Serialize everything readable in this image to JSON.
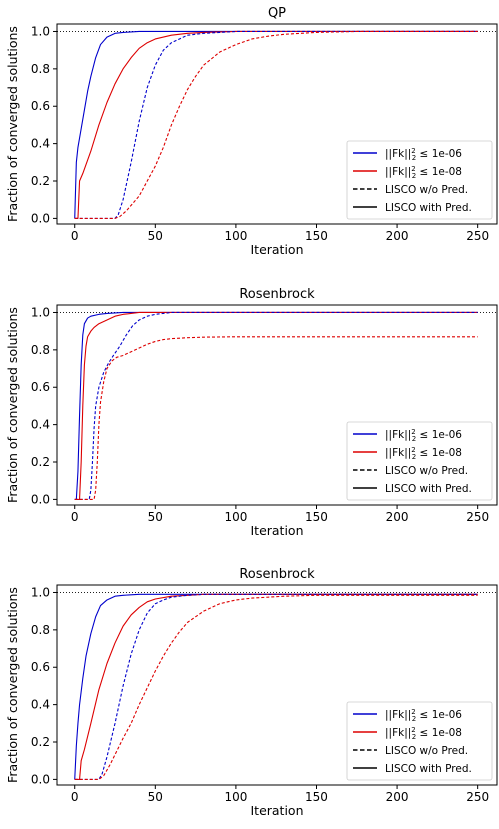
{
  "chart_data": [
    {
      "type": "line",
      "title": "QP",
      "xlabel": "Iteration",
      "ylabel": "Fraction of converged solutions",
      "xlim": [
        -11,
        262
      ],
      "ylim": [
        -0.03,
        1.04
      ],
      "xticks": [
        0,
        50,
        100,
        150,
        200,
        250
      ],
      "yticks": [
        "0.0",
        "0.2",
        "0.4",
        "0.6",
        "0.8",
        "1.0"
      ],
      "reference_line": {
        "y": 1.0,
        "style": "dotted",
        "color": "#000000"
      },
      "grid": false,
      "legend_position": "lower-right",
      "legend": [
        {
          "prefix": "||Fk||",
          "sup": "2",
          "sub": "2",
          "suffix": " ≤ 1e-06",
          "color": "#0000cc",
          "dash": "solid"
        },
        {
          "prefix": "||Fk||",
          "sup": "2",
          "sub": "2",
          "suffix": " ≤ 1e-08",
          "color": "#dd0000",
          "dash": "solid"
        },
        {
          "label": "LISCO w/o Pred.",
          "color": "#000000",
          "dash": "dashed"
        },
        {
          "label": "LISCO with Pred.",
          "color": "#000000",
          "dash": "solid"
        }
      ],
      "series": [
        {
          "color": "#0000cc",
          "dash": "solid",
          "x": [
            0,
            1,
            2,
            4,
            6,
            8,
            10,
            13,
            16,
            20,
            25,
            30,
            40,
            60,
            100,
            150,
            200,
            250
          ],
          "y": [
            0,
            0.3,
            0.38,
            0.48,
            0.58,
            0.68,
            0.76,
            0.86,
            0.93,
            0.97,
            0.99,
            0.995,
            1.0,
            1.0,
            1.0,
            1.0,
            1.0,
            1.0
          ]
        },
        {
          "color": "#dd0000",
          "dash": "solid",
          "x": [
            0,
            2,
            3,
            5,
            10,
            15,
            20,
            25,
            30,
            35,
            40,
            45,
            50,
            60,
            70,
            80,
            100,
            150,
            250
          ],
          "y": [
            0,
            0,
            0.2,
            0.24,
            0.36,
            0.5,
            0.62,
            0.72,
            0.8,
            0.86,
            0.91,
            0.94,
            0.96,
            0.98,
            0.99,
            0.995,
            1.0,
            1.0,
            1.0
          ]
        },
        {
          "color": "#0000cc",
          "dash": "dashed",
          "x": [
            0,
            25,
            27,
            30,
            35,
            40,
            45,
            50,
            55,
            60,
            65,
            70,
            80,
            90,
            100,
            120,
            150,
            250
          ],
          "y": [
            0,
            0,
            0.02,
            0.1,
            0.3,
            0.52,
            0.7,
            0.82,
            0.9,
            0.94,
            0.96,
            0.98,
            0.99,
            0.995,
            1.0,
            1.0,
            1.0,
            1.0
          ]
        },
        {
          "color": "#dd0000",
          "dash": "dashed",
          "x": [
            0,
            25,
            28,
            32,
            36,
            40,
            45,
            50,
            55,
            60,
            65,
            70,
            75,
            80,
            90,
            100,
            110,
            120,
            130,
            140,
            150,
            175,
            200,
            250
          ],
          "y": [
            0,
            0,
            0.01,
            0.04,
            0.08,
            0.12,
            0.2,
            0.28,
            0.38,
            0.5,
            0.6,
            0.69,
            0.76,
            0.82,
            0.89,
            0.93,
            0.96,
            0.975,
            0.985,
            0.99,
            0.995,
            1.0,
            1.0,
            1.0
          ]
        }
      ]
    },
    {
      "type": "line",
      "title": "Rosenbrock",
      "xlabel": "Iteration",
      "ylabel": "Fraction of converged solutions",
      "xlim": [
        -11,
        262
      ],
      "ylim": [
        -0.03,
        1.04
      ],
      "xticks": [
        0,
        50,
        100,
        150,
        200,
        250
      ],
      "yticks": [
        "0.0",
        "0.2",
        "0.4",
        "0.6",
        "0.8",
        "1.0"
      ],
      "reference_line": {
        "y": 1.0,
        "style": "dotted",
        "color": "#000000"
      },
      "grid": false,
      "legend_position": "lower-right",
      "legend": [
        {
          "prefix": "||Fk||",
          "sup": "2",
          "sub": "2",
          "suffix": " ≤ 1e-06",
          "color": "#0000cc",
          "dash": "solid"
        },
        {
          "prefix": "||Fk||",
          "sup": "2",
          "sub": "2",
          "suffix": " ≤ 1e-08",
          "color": "#dd0000",
          "dash": "solid"
        },
        {
          "label": "LISCO w/o Pred.",
          "color": "#000000",
          "dash": "dashed"
        },
        {
          "label": "LISCO with Pred.",
          "color": "#000000",
          "dash": "solid"
        }
      ],
      "series": [
        {
          "color": "#0000cc",
          "dash": "solid",
          "x": [
            0,
            1,
            2,
            3,
            4,
            5,
            6,
            8,
            10,
            15,
            20,
            30,
            40,
            60,
            250
          ],
          "y": [
            0,
            0,
            0.15,
            0.45,
            0.72,
            0.88,
            0.94,
            0.97,
            0.98,
            0.99,
            0.995,
            1.0,
            1.0,
            1.0,
            1.0
          ]
        },
        {
          "color": "#dd0000",
          "dash": "solid",
          "x": [
            0,
            3,
            4,
            5,
            6,
            7,
            8,
            10,
            12,
            15,
            20,
            25,
            30,
            40,
            50,
            250
          ],
          "y": [
            0,
            0,
            0.2,
            0.5,
            0.72,
            0.82,
            0.87,
            0.9,
            0.92,
            0.94,
            0.96,
            0.98,
            0.99,
            1.0,
            1.0,
            1.0
          ]
        },
        {
          "color": "#0000cc",
          "dash": "dashed",
          "x": [
            0,
            9,
            10,
            11,
            12,
            13,
            15,
            18,
            21,
            24,
            28,
            32,
            36,
            40,
            45,
            50,
            60,
            250
          ],
          "y": [
            0,
            0,
            0.05,
            0.2,
            0.38,
            0.5,
            0.6,
            0.68,
            0.73,
            0.77,
            0.82,
            0.88,
            0.93,
            0.96,
            0.98,
            0.99,
            1.0,
            1.0
          ]
        },
        {
          "color": "#dd0000",
          "dash": "dashed",
          "x": [
            0,
            12,
            13,
            14,
            15,
            16,
            18,
            20,
            23,
            26,
            30,
            35,
            40,
            45,
            50,
            55,
            60,
            70,
            80,
            100,
            150,
            250
          ],
          "y": [
            0,
            0,
            0.05,
            0.2,
            0.4,
            0.52,
            0.63,
            0.7,
            0.74,
            0.76,
            0.77,
            0.79,
            0.81,
            0.83,
            0.845,
            0.855,
            0.86,
            0.865,
            0.868,
            0.87,
            0.87,
            0.87
          ]
        }
      ]
    },
    {
      "type": "line",
      "title": "Rosenbrock",
      "xlabel": "Iteration",
      "ylabel": "Fraction of converged solutions",
      "xlim": [
        -11,
        262
      ],
      "ylim": [
        -0.03,
        1.04
      ],
      "xticks": [
        0,
        50,
        100,
        150,
        200,
        250
      ],
      "yticks": [
        "0.0",
        "0.2",
        "0.4",
        "0.6",
        "0.8",
        "1.0"
      ],
      "reference_line": {
        "y": 1.0,
        "style": "dotted",
        "color": "#000000"
      },
      "grid": false,
      "legend_position": "lower-right",
      "legend": [
        {
          "prefix": "||Fk||",
          "sup": "2",
          "sub": "2",
          "suffix": " ≤ 1e-06",
          "color": "#0000cc",
          "dash": "solid"
        },
        {
          "prefix": "||Fk||",
          "sup": "2",
          "sub": "2",
          "suffix": " ≤ 1e-08",
          "color": "#dd0000",
          "dash": "solid"
        },
        {
          "label": "LISCO w/o Pred.",
          "color": "#000000",
          "dash": "dashed"
        },
        {
          "label": "LISCO with Pred.",
          "color": "#000000",
          "dash": "solid"
        }
      ],
      "series": [
        {
          "color": "#0000cc",
          "dash": "solid",
          "x": [
            0,
            1,
            2,
            3,
            5,
            7,
            10,
            13,
            16,
            20,
            25,
            30,
            40,
            60,
            100,
            250
          ],
          "y": [
            0,
            0.18,
            0.3,
            0.4,
            0.54,
            0.66,
            0.78,
            0.87,
            0.93,
            0.96,
            0.98,
            0.985,
            0.99,
            0.99,
            0.99,
            0.99
          ]
        },
        {
          "color": "#dd0000",
          "dash": "solid",
          "x": [
            0,
            3,
            4,
            6,
            10,
            15,
            20,
            25,
            30,
            35,
            40,
            45,
            50,
            60,
            70,
            80,
            100,
            250
          ],
          "y": [
            0,
            0,
            0.1,
            0.16,
            0.3,
            0.48,
            0.62,
            0.73,
            0.82,
            0.88,
            0.92,
            0.95,
            0.965,
            0.98,
            0.985,
            0.99,
            0.99,
            0.99
          ]
        },
        {
          "color": "#0000cc",
          "dash": "dashed",
          "x": [
            0,
            15,
            17,
            20,
            25,
            30,
            35,
            40,
            45,
            50,
            55,
            60,
            70,
            80,
            100,
            250
          ],
          "y": [
            0,
            0,
            0.03,
            0.12,
            0.3,
            0.5,
            0.67,
            0.8,
            0.89,
            0.94,
            0.96,
            0.975,
            0.985,
            0.99,
            0.99,
            0.99
          ]
        },
        {
          "color": "#dd0000",
          "dash": "dashed",
          "x": [
            0,
            15,
            18,
            22,
            26,
            30,
            35,
            40,
            45,
            50,
            55,
            60,
            65,
            70,
            80,
            90,
            100,
            110,
            120,
            130,
            150,
            200,
            250
          ],
          "y": [
            0,
            0,
            0.02,
            0.08,
            0.15,
            0.22,
            0.3,
            0.4,
            0.49,
            0.58,
            0.66,
            0.73,
            0.79,
            0.84,
            0.9,
            0.94,
            0.96,
            0.97,
            0.975,
            0.98,
            0.985,
            0.985,
            0.985
          ]
        }
      ]
    }
  ]
}
